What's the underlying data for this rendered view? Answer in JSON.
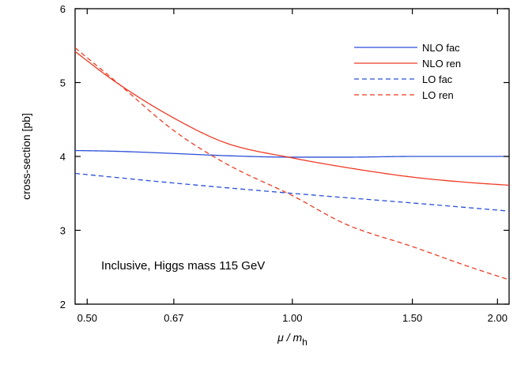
{
  "chart_data": {
    "type": "line",
    "xscale": "log",
    "xlim": [
      0.48,
      2.08
    ],
    "ylim": [
      2,
      6
    ],
    "x_ticks": [
      0.5,
      0.67,
      1.0,
      1.5,
      2.0
    ],
    "x_tick_labels": [
      "0.50",
      "0.67",
      "1.00",
      "1.50",
      "2.00"
    ],
    "y_ticks": [
      2,
      3,
      4,
      5,
      6
    ],
    "y_tick_labels": [
      "2",
      "3",
      "4",
      "5",
      "6"
    ],
    "xlabel_main": "μ / m",
    "xlabel_sub": "h",
    "ylabel": "cross-section [pb]",
    "annotation": "Inclusive, Higgs mass 115 GeV",
    "legend_position": "top-right",
    "series": [
      {
        "name": "NLO fac",
        "color": "#2b4fd8",
        "dash": "solid",
        "x": [
          0.48,
          0.55,
          0.67,
          0.8,
          1.0,
          1.2,
          1.5,
          1.8,
          2.08
        ],
        "y": [
          4.08,
          4.07,
          4.04,
          4.01,
          3.99,
          3.99,
          4.0,
          4.0,
          4.0
        ]
      },
      {
        "name": "NLO ren",
        "color": "#ee3b24",
        "dash": "solid",
        "x": [
          0.48,
          0.55,
          0.67,
          0.8,
          1.0,
          1.2,
          1.5,
          1.8,
          2.08
        ],
        "y": [
          5.42,
          5.01,
          4.52,
          4.18,
          3.98,
          3.85,
          3.72,
          3.65,
          3.61
        ]
      },
      {
        "name": "LO fac",
        "color": "#2b4fd8",
        "dash": "dashed",
        "x": [
          0.48,
          0.67,
          1.0,
          1.5,
          2.08
        ],
        "y": [
          3.77,
          3.64,
          3.5,
          3.37,
          3.26
        ]
      },
      {
        "name": "LO ren",
        "color": "#ee3b24",
        "dash": "dashed",
        "x": [
          0.48,
          0.55,
          0.67,
          0.8,
          1.0,
          1.2,
          1.5,
          1.8,
          2.08
        ],
        "y": [
          5.47,
          5.02,
          4.35,
          3.9,
          3.47,
          3.08,
          2.78,
          2.52,
          2.33
        ]
      }
    ]
  }
}
